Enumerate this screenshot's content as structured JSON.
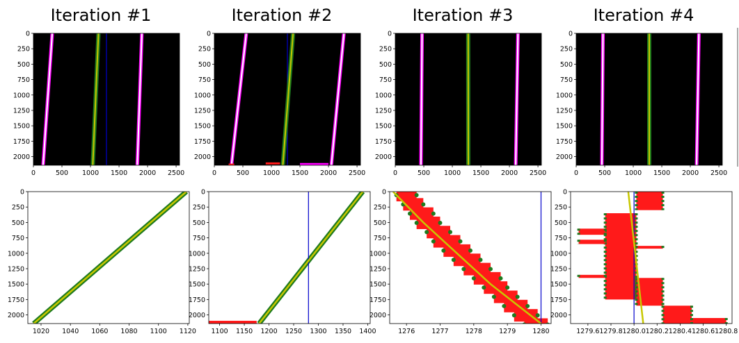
{
  "colors": {
    "background": "#000000",
    "lane": "#ff00ff",
    "lane_core": "#ffffff",
    "poly_fit": "#c8c800",
    "points": "#1e7a1e",
    "segments": "#ff1a1a",
    "vline": "#0000cc"
  },
  "chart_data": [
    {
      "panel": 1,
      "row": "top",
      "type": "image",
      "title": "Iteration #1",
      "xlim": [
        0,
        2560
      ],
      "ylim": [
        2140,
        0
      ],
      "xticks": [
        "0",
        "500",
        "1000",
        "1500",
        "2000",
        "2500"
      ],
      "yticks": [
        "0",
        "250",
        "500",
        "750",
        "1000",
        "1250",
        "1500",
        "1750",
        "2000"
      ],
      "lanes": [
        [
          [
            330,
            0
          ],
          [
            170,
            2140
          ]
        ],
        [
          [
            1900,
            0
          ],
          [
            1820,
            2140
          ]
        ]
      ],
      "fit": [
        [
          1140,
          0
        ],
        [
          1040,
          2140
        ]
      ],
      "vline_x": 1280,
      "red_segments": []
    },
    {
      "panel": 2,
      "row": "top",
      "type": "image",
      "title": "Iteration #2",
      "xlim": [
        0,
        2560
      ],
      "ylim": [
        2140,
        0
      ],
      "xticks": [
        "0",
        "500",
        "1000",
        "1500",
        "2000",
        "2500"
      ],
      "yticks": [
        "0",
        "250",
        "500",
        "750",
        "1000",
        "1250",
        "1500",
        "1750",
        "2000"
      ],
      "lanes": [
        [
          [
            560,
            0
          ],
          [
            300,
            2140
          ]
        ],
        [
          [
            2270,
            0
          ],
          [
            2050,
            2140
          ]
        ]
      ],
      "fit": [
        [
          1380,
          0
        ],
        [
          1200,
          2140
        ]
      ],
      "vline_x": 1280,
      "red_segments": [
        [
          900,
          1150,
          2110
        ],
        [
          1500,
          2000,
          2120
        ],
        [
          250,
          350,
          2130
        ]
      ]
    },
    {
      "panel": 3,
      "row": "top",
      "type": "image",
      "title": "Iteration #3",
      "xlim": [
        0,
        2560
      ],
      "ylim": [
        2140,
        0
      ],
      "xticks": [
        "0",
        "500",
        "1000",
        "1500",
        "2000",
        "2500"
      ],
      "yticks": [
        "0",
        "250",
        "500",
        "750",
        "1000",
        "1250",
        "1500",
        "1750",
        "2000"
      ],
      "lanes": [
        [
          [
            470,
            0
          ],
          [
            450,
            2140
          ]
        ],
        [
          [
            2150,
            0
          ],
          [
            2110,
            2140
          ]
        ]
      ],
      "fit": [
        [
          1278,
          0
        ],
        [
          1280,
          2140
        ]
      ],
      "vline_x": 1280,
      "red_segments": []
    },
    {
      "panel": 4,
      "row": "top",
      "type": "image",
      "title": "Iteration #4",
      "xlim": [
        0,
        2560
      ],
      "ylim": [
        2140,
        0
      ],
      "xticks": [
        "0",
        "500",
        "1000",
        "1500",
        "2000",
        "2500"
      ],
      "yticks": [
        "0",
        "250",
        "500",
        "750",
        "1000",
        "1250",
        "1500",
        "1750",
        "2000"
      ],
      "lanes": [
        [
          [
            470,
            0
          ],
          [
            450,
            2140
          ]
        ],
        [
          [
            2150,
            0
          ],
          [
            2110,
            2140
          ]
        ]
      ],
      "fit": [
        [
          1280,
          0
        ],
        [
          1280,
          2140
        ]
      ],
      "vline_x": 1280,
      "red_segments": []
    },
    {
      "panel": 5,
      "row": "bottom",
      "type": "scatter",
      "xlim": [
        1011,
        1121
      ],
      "ylim": [
        2140,
        0
      ],
      "xticks": [
        "1020",
        "1040",
        "1060",
        "1080",
        "1100",
        "1120"
      ],
      "yticks": [
        "0",
        "250",
        "500",
        "750",
        "1000",
        "1250",
        "1500",
        "1750",
        "2000"
      ],
      "points_line": [
        [
          1119,
          0
        ],
        [
          1015,
          2140
        ]
      ],
      "fit": [
        [
          1119,
          0
        ],
        [
          1015,
          2140
        ]
      ],
      "vline_x": null,
      "red_segments": []
    },
    {
      "panel": 6,
      "row": "bottom",
      "type": "scatter",
      "xlim": [
        1078,
        1405
      ],
      "ylim": [
        2140,
        0
      ],
      "xticks": [
        "1100",
        "1150",
        "1200",
        "1250",
        "1300",
        "1350",
        "1400"
      ],
      "yticks": [
        "0",
        "250",
        "500",
        "750",
        "1000",
        "1250",
        "1500",
        "1750",
        "2000"
      ],
      "points_line": [
        [
          1390,
          0
        ],
        [
          1180,
          2140
        ]
      ],
      "fit": [
        [
          1390,
          0
        ],
        [
          1180,
          2140
        ]
      ],
      "vline_x": 1280,
      "red_segments": [
        [
          1078,
          1175,
          2140
        ]
      ]
    },
    {
      "panel": 7,
      "row": "bottom",
      "type": "scatter",
      "xlim": [
        1275.5,
        1280.3
      ],
      "ylim": [
        2140,
        0
      ],
      "xticks": [
        "1276",
        "1277",
        "1278",
        "1279",
        "1280"
      ],
      "yticks": [
        "0",
        "250",
        "500",
        "750",
        "1000",
        "1250",
        "1500",
        "1750",
        "2000"
      ],
      "points_line": [],
      "staircase": [
        [
          1275.7,
          1276.3,
          0
        ],
        [
          1275.9,
          1276.5,
          150
        ],
        [
          1276.1,
          1276.8,
          300
        ],
        [
          1276.3,
          1277.0,
          450
        ],
        [
          1276.6,
          1277.3,
          600
        ],
        [
          1276.8,
          1277.6,
          750
        ],
        [
          1277.1,
          1277.9,
          900
        ],
        [
          1277.4,
          1278.2,
          1050
        ],
        [
          1277.7,
          1278.5,
          1200
        ],
        [
          1278.0,
          1278.8,
          1350
        ],
        [
          1278.3,
          1279.0,
          1500
        ],
        [
          1278.6,
          1279.3,
          1650
        ],
        [
          1278.9,
          1279.6,
          1800
        ],
        [
          1279.2,
          1279.9,
          1950
        ],
        [
          1279.5,
          1280.2,
          2100
        ]
      ],
      "fit": [
        [
          1275.6,
          0
        ],
        [
          1276.5,
          500
        ],
        [
          1277.5,
          1000
        ],
        [
          1278.5,
          1500
        ],
        [
          1280.0,
          2140
        ]
      ],
      "vline_x": 1280,
      "red_segments": []
    },
    {
      "panel": 8,
      "row": "bottom",
      "type": "scatter",
      "xlim": [
        1279.45,
        1280.85
      ],
      "ylim": [
        2140,
        0
      ],
      "xticks": [
        "1279.6",
        "1279.8",
        "1280.0",
        "1280.2",
        "1280.4",
        "1280.6",
        "1280.8"
      ],
      "yticks": [
        "0",
        "250",
        "500",
        "750",
        "1000",
        "1250",
        "1500",
        "1750",
        "2000"
      ],
      "points_line": [],
      "bars": [
        [
          1280.02,
          1280.25,
          0,
          300
        ],
        [
          1279.75,
          1280.02,
          350,
          1750
        ],
        [
          1279.52,
          1279.75,
          600,
          700
        ],
        [
          1279.52,
          1279.75,
          780,
          850
        ],
        [
          1279.52,
          1279.75,
          1350,
          1400
        ],
        [
          1280.02,
          1280.25,
          880,
          920
        ],
        [
          1280.02,
          1280.25,
          1400,
          1850
        ],
        [
          1280.25,
          1280.5,
          1850,
          2140
        ],
        [
          1280.5,
          1280.8,
          2050,
          2140
        ]
      ],
      "fit": [
        [
          1279.95,
          0
        ],
        [
          1280.08,
          2140
        ]
      ],
      "vline_x": 1280.0,
      "red_segments": []
    }
  ]
}
